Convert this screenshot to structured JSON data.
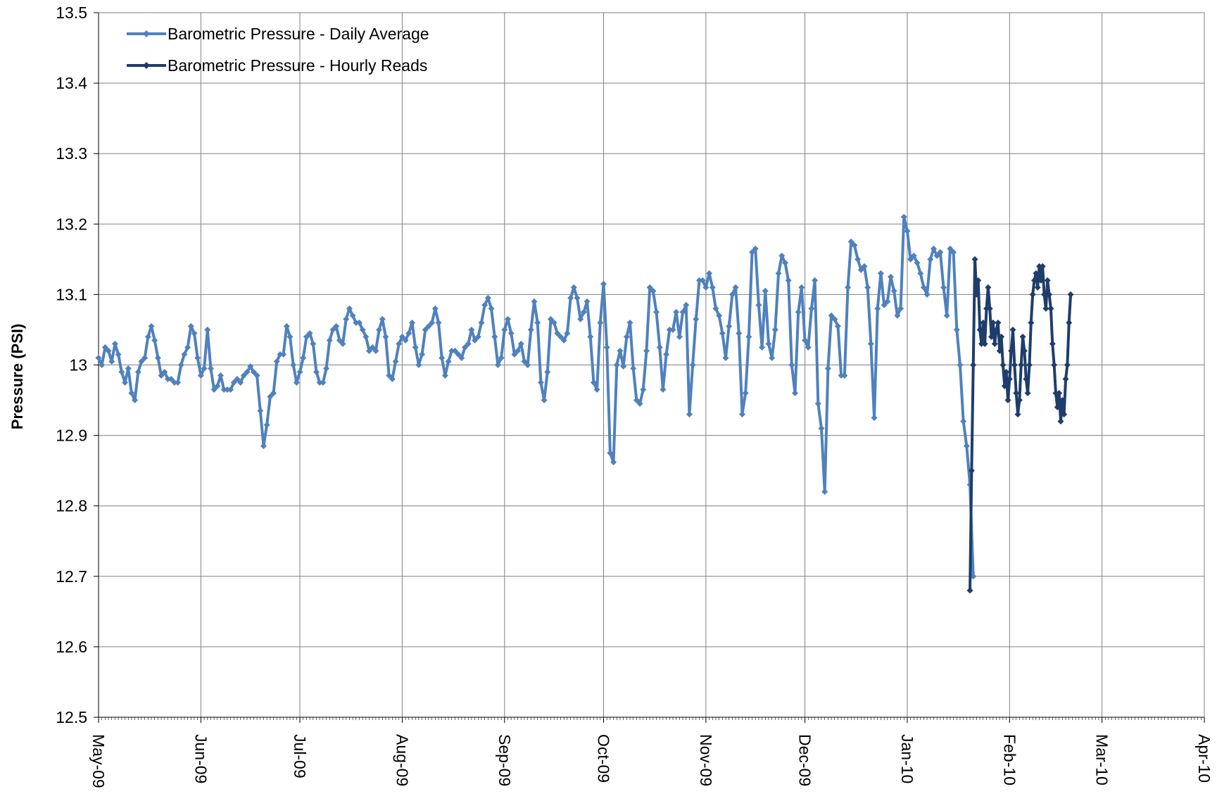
{
  "chart_data": {
    "type": "line",
    "ylabel": "Pressure (PSI)",
    "ylim": [
      12.5,
      13.5
    ],
    "yticks": [
      12.5,
      12.6,
      12.7,
      12.8,
      12.9,
      13,
      13.1,
      13.2,
      13.3,
      13.4,
      13.5
    ],
    "xlim": [
      0,
      335
    ],
    "xticks": [
      {
        "value": 0,
        "label": "May-09"
      },
      {
        "value": 31,
        "label": "Jun-09"
      },
      {
        "value": 61,
        "label": "Jul-09"
      },
      {
        "value": 92,
        "label": "Aug-09"
      },
      {
        "value": 123,
        "label": "Sep-09"
      },
      {
        "value": 153,
        "label": "Oct-09"
      },
      {
        "value": 184,
        "label": "Nov-09"
      },
      {
        "value": 214,
        "label": "Dec-09"
      },
      {
        "value": 245,
        "label": "Jan-10"
      },
      {
        "value": 276,
        "label": "Feb-10"
      },
      {
        "value": 304,
        "label": "Mar-10"
      },
      {
        "value": 335,
        "label": "Apr-10"
      }
    ],
    "grid": true,
    "legend": "upper left",
    "series": [
      {
        "name": "Barometric Pressure - Daily Average",
        "color": "#4f81bd",
        "x": [
          0,
          1,
          2,
          3,
          4,
          5,
          6,
          7,
          8,
          9,
          10,
          11,
          12,
          13,
          14,
          15,
          16,
          17,
          18,
          19,
          20,
          21,
          22,
          23,
          24,
          25,
          26,
          27,
          28,
          29,
          30,
          31,
          32,
          33,
          34,
          35,
          36,
          37,
          38,
          39,
          40,
          41,
          42,
          43,
          44,
          45,
          46,
          47,
          48,
          49,
          50,
          51,
          52,
          53,
          54,
          55,
          56,
          57,
          58,
          59,
          60,
          61,
          62,
          63,
          64,
          65,
          66,
          67,
          68,
          69,
          70,
          71,
          72,
          73,
          74,
          75,
          76,
          77,
          78,
          79,
          80,
          81,
          82,
          83,
          84,
          85,
          86,
          87,
          88,
          89,
          90,
          91,
          92,
          93,
          94,
          95,
          96,
          97,
          98,
          99,
          100,
          101,
          102,
          103,
          104,
          105,
          106,
          107,
          108,
          109,
          110,
          111,
          112,
          113,
          114,
          115,
          116,
          117,
          118,
          119,
          120,
          121,
          122,
          123,
          124,
          125,
          126,
          127,
          128,
          129,
          130,
          131,
          132,
          133,
          134,
          135,
          136,
          137,
          138,
          139,
          140,
          141,
          142,
          143,
          144,
          145,
          146,
          147,
          148,
          149,
          150,
          151,
          152,
          153,
          154,
          155,
          156,
          157,
          158,
          159,
          160,
          161,
          162,
          163,
          164,
          165,
          166,
          167,
          168,
          169,
          170,
          171,
          172,
          173,
          174,
          175,
          176,
          177,
          178,
          179,
          180,
          181,
          182,
          183,
          184,
          185,
          186,
          187,
          188,
          189,
          190,
          191,
          192,
          193,
          194,
          195,
          196,
          197,
          198,
          199,
          200,
          201,
          202,
          203,
          204,
          205,
          206,
          207,
          208,
          209,
          210,
          211,
          212,
          213,
          214,
          215,
          216,
          217,
          218,
          219,
          220,
          221,
          222,
          223,
          224,
          225,
          226,
          227,
          228,
          229,
          230,
          231,
          232,
          233,
          234,
          235,
          236,
          237,
          238,
          239,
          240,
          241,
          242,
          243,
          244,
          245,
          246,
          247,
          248,
          249,
          250,
          251,
          252,
          253,
          254,
          255,
          256,
          257,
          258,
          259,
          260,
          261,
          262,
          263,
          264,
          265
        ],
        "values": [
          13.01,
          13.0,
          13.025,
          13.02,
          13.005,
          13.03,
          13.015,
          12.99,
          12.975,
          12.995,
          12.96,
          12.95,
          12.99,
          13.005,
          13.01,
          13.04,
          13.055,
          13.035,
          13.01,
          12.985,
          12.99,
          12.98,
          12.98,
          12.975,
          12.975,
          13.0,
          13.015,
          13.025,
          13.055,
          13.045,
          13.01,
          12.985,
          12.995,
          13.05,
          12.995,
          12.965,
          12.97,
          12.985,
          12.965,
          12.965,
          12.965,
          12.975,
          12.98,
          12.975,
          12.985,
          12.99,
          12.998,
          12.99,
          12.985,
          12.935,
          12.885,
          12.915,
          12.955,
          12.96,
          13.005,
          13.015,
          13.015,
          13.055,
          13.04,
          13.0,
          12.975,
          12.99,
          13.01,
          13.04,
          13.045,
          13.03,
          12.99,
          12.975,
          12.975,
          12.995,
          13.035,
          13.05,
          13.055,
          13.035,
          13.03,
          13.065,
          13.08,
          13.07,
          13.06,
          13.06,
          13.05,
          13.04,
          13.02,
          13.025,
          13.02,
          13.05,
          13.065,
          13.04,
          12.985,
          12.98,
          13.005,
          13.03,
          13.04,
          13.035,
          13.045,
          13.06,
          13.025,
          13.0,
          13.015,
          13.05,
          13.055,
          13.06,
          13.08,
          13.06,
          13.01,
          12.985,
          13.005,
          13.02,
          13.02,
          13.015,
          13.01,
          13.025,
          13.03,
          13.05,
          13.035,
          13.04,
          13.06,
          13.085,
          13.095,
          13.08,
          13.04,
          13.0,
          13.01,
          13.05,
          13.065,
          13.045,
          13.015,
          13.02,
          13.03,
          13.005,
          13.0,
          13.05,
          13.09,
          13.06,
          12.975,
          12.95,
          12.99,
          13.065,
          13.06,
          13.045,
          13.04,
          13.035,
          13.045,
          13.095,
          13.11,
          13.095,
          13.065,
          13.075,
          13.09,
          13.04,
          12.975,
          12.965,
          13.06,
          13.115,
          13.025,
          12.875,
          12.862,
          13.0,
          13.02,
          12.998,
          13.04,
          13.06,
          12.995,
          12.95,
          12.945,
          12.965,
          13.02,
          13.11,
          13.105,
          13.075,
          13.025,
          12.965,
          13.015,
          13.05,
          13.05,
          13.075,
          13.04,
          13.075,
          13.085,
          12.93,
          13.0,
          13.065,
          13.12,
          13.12,
          13.11,
          13.13,
          13.11,
          13.08,
          13.07,
          13.045,
          13.01,
          13.055,
          13.1,
          13.11,
          13.045,
          12.93,
          12.96,
          13.04,
          13.16,
          13.165,
          13.085,
          13.025,
          13.105,
          13.03,
          13.01,
          13.05,
          13.13,
          13.155,
          13.145,
          13.12,
          13.0,
          12.96,
          13.075,
          13.11,
          13.035,
          13.025,
          13.08,
          13.12,
          12.945,
          12.91,
          12.82,
          12.995,
          13.07,
          13.065,
          13.055,
          12.985,
          12.985,
          13.11,
          13.175,
          13.17,
          13.15,
          13.135,
          13.14,
          13.11,
          13.03,
          12.925,
          13.08,
          13.13,
          13.085,
          13.09,
          13.125,
          13.105,
          13.07,
          13.08,
          13.21,
          13.19,
          13.15,
          13.155,
          13.145,
          13.13,
          13.11,
          13.1,
          13.15,
          13.165,
          13.155,
          13.16,
          13.11,
          13.07,
          13.165,
          13.16,
          13.05,
          13.0,
          12.92,
          12.885,
          12.83,
          12.7
        ]
      },
      {
        "name": "Barometric Pressure - Hourly Reads",
        "color": "#1f3d6b",
        "x": [
          264,
          264.5,
          265,
          265.5,
          266,
          266.5,
          267,
          267.5,
          268,
          268.5,
          269,
          269.5,
          270,
          270.5,
          271,
          271.5,
          272,
          272.5,
          273,
          273.5,
          274,
          274.5,
          275,
          275.5,
          276,
          276.5,
          277,
          277.5,
          278,
          278.5,
          279,
          279.5,
          280,
          280.5,
          281,
          281.5,
          282,
          282.5,
          283,
          283.5,
          284,
          284.5,
          285,
          285.5,
          286,
          286.5,
          287,
          287.5,
          288,
          288.5,
          289,
          289.5,
          290,
          290.5,
          291,
          291.5,
          292,
          292.5,
          293,
          293.5,
          294,
          294.5
        ],
        "values": [
          12.68,
          12.85,
          13.0,
          13.15,
          13.1,
          13.12,
          13.05,
          13.03,
          13.06,
          13.03,
          13.08,
          13.11,
          13.08,
          13.04,
          13.06,
          13.03,
          13.05,
          13.06,
          13.02,
          13.04,
          13.0,
          12.97,
          12.99,
          12.95,
          12.98,
          13.02,
          13.05,
          13.0,
          12.96,
          12.93,
          12.95,
          13.0,
          13.04,
          13.02,
          12.98,
          12.96,
          13.0,
          13.06,
          13.1,
          13.12,
          13.13,
          13.11,
          13.14,
          13.12,
          13.14,
          13.1,
          13.08,
          13.12,
          13.1,
          13.08,
          13.03,
          13.0,
          12.96,
          12.94,
          12.96,
          12.92,
          12.95,
          12.93,
          12.98,
          13.0,
          13.06,
          13.1
        ]
      }
    ]
  }
}
